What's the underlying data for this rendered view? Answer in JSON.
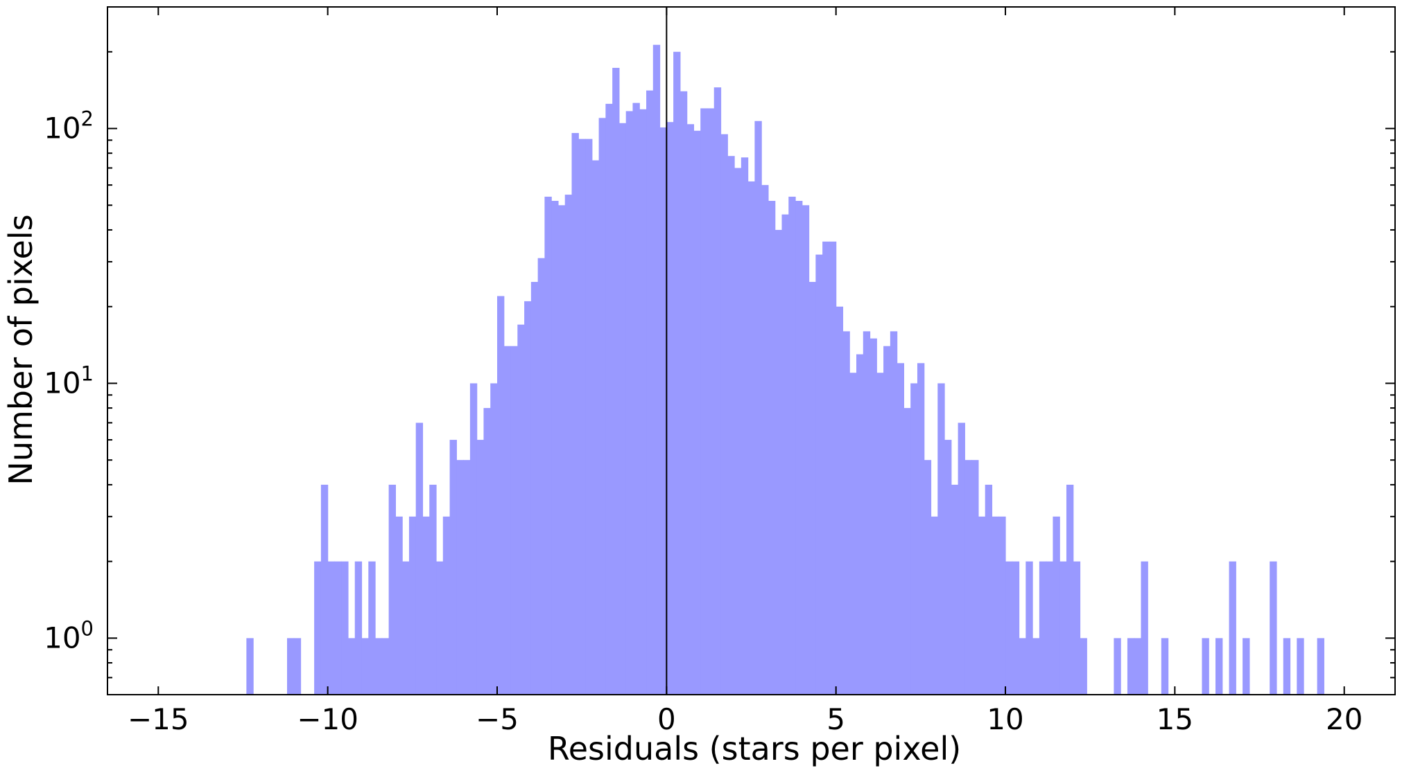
{
  "chart_data": {
    "type": "bar",
    "subtype": "histogram",
    "title": "",
    "xlabel": "Residuals (stars per pixel)",
    "ylabel": "Number of pixels",
    "xlim": [
      -16.5,
      21.5
    ],
    "ylim": [
      0.6,
      300
    ],
    "yscale": "log",
    "grid": false,
    "bin_width": 0.2,
    "bar_color": "#9999ff",
    "reference_line": {
      "x": 0,
      "color": "#000000"
    },
    "x_ticks": [
      "−15",
      "−10",
      "−5",
      "0",
      "5",
      "10",
      "15",
      "20"
    ],
    "x_tick_values": [
      -15,
      -10,
      -5,
      0,
      5,
      10,
      15,
      20
    ],
    "y_ticks": [
      {
        "value": 1,
        "base": "10",
        "exp": "0"
      },
      {
        "value": 10,
        "base": "10",
        "exp": "1"
      },
      {
        "value": 100,
        "base": "10",
        "exp": "2"
      }
    ],
    "series": [
      {
        "bins": [
          {
            "x": -12.3,
            "y": 1
          },
          {
            "x": -11.1,
            "y": 1
          },
          {
            "x": -10.9,
            "y": 1
          },
          {
            "x": -10.3,
            "y": 2
          },
          {
            "x": -10.1,
            "y": 4
          },
          {
            "x": -9.9,
            "y": 2
          },
          {
            "x": -9.7,
            "y": 2
          },
          {
            "x": -9.5,
            "y": 2
          },
          {
            "x": -9.3,
            "y": 1
          },
          {
            "x": -9.1,
            "y": 2
          },
          {
            "x": -8.9,
            "y": 1
          },
          {
            "x": -8.7,
            "y": 2
          },
          {
            "x": -8.5,
            "y": 1
          },
          {
            "x": -8.3,
            "y": 1
          },
          {
            "x": -8.1,
            "y": 4
          },
          {
            "x": -7.9,
            "y": 3
          },
          {
            "x": -7.7,
            "y": 2
          },
          {
            "x": -7.5,
            "y": 3
          },
          {
            "x": -7.3,
            "y": 7
          },
          {
            "x": -7.1,
            "y": 3
          },
          {
            "x": -6.9,
            "y": 4
          },
          {
            "x": -6.7,
            "y": 2
          },
          {
            "x": -6.5,
            "y": 3
          },
          {
            "x": -6.3,
            "y": 6
          },
          {
            "x": -6.1,
            "y": 5
          },
          {
            "x": -5.9,
            "y": 5
          },
          {
            "x": -5.7,
            "y": 10
          },
          {
            "x": -5.5,
            "y": 6
          },
          {
            "x": -5.3,
            "y": 8
          },
          {
            "x": -5.1,
            "y": 10
          },
          {
            "x": -4.9,
            "y": 22
          },
          {
            "x": -4.7,
            "y": 14
          },
          {
            "x": -4.5,
            "y": 14
          },
          {
            "x": -4.3,
            "y": 17
          },
          {
            "x": -4.1,
            "y": 21
          },
          {
            "x": -3.9,
            "y": 25
          },
          {
            "x": -3.7,
            "y": 31
          },
          {
            "x": -3.5,
            "y": 54
          },
          {
            "x": -3.3,
            "y": 52
          },
          {
            "x": -3.1,
            "y": 50
          },
          {
            "x": -2.9,
            "y": 55
          },
          {
            "x": -2.7,
            "y": 96
          },
          {
            "x": -2.5,
            "y": 91
          },
          {
            "x": -2.3,
            "y": 91
          },
          {
            "x": -2.1,
            "y": 75
          },
          {
            "x": -1.9,
            "y": 110
          },
          {
            "x": -1.7,
            "y": 125
          },
          {
            "x": -1.5,
            "y": 173
          },
          {
            "x": -1.3,
            "y": 105
          },
          {
            "x": -1.1,
            "y": 117
          },
          {
            "x": -0.9,
            "y": 126
          },
          {
            "x": -0.7,
            "y": 119
          },
          {
            "x": -0.5,
            "y": 141
          },
          {
            "x": -0.3,
            "y": 213
          },
          {
            "x": -0.1,
            "y": 101
          },
          {
            "x": 0.1,
            "y": 106
          },
          {
            "x": 0.3,
            "y": 200
          },
          {
            "x": 0.5,
            "y": 140
          },
          {
            "x": 0.7,
            "y": 104
          },
          {
            "x": 0.9,
            "y": 98
          },
          {
            "x": 1.1,
            "y": 120
          },
          {
            "x": 1.3,
            "y": 120
          },
          {
            "x": 1.5,
            "y": 145
          },
          {
            "x": 1.7,
            "y": 95
          },
          {
            "x": 1.9,
            "y": 78
          },
          {
            "x": 2.1,
            "y": 70
          },
          {
            "x": 2.3,
            "y": 77
          },
          {
            "x": 2.5,
            "y": 62
          },
          {
            "x": 2.7,
            "y": 107
          },
          {
            "x": 2.9,
            "y": 60
          },
          {
            "x": 3.1,
            "y": 52
          },
          {
            "x": 3.3,
            "y": 40
          },
          {
            "x": 3.5,
            "y": 46
          },
          {
            "x": 3.7,
            "y": 54
          },
          {
            "x": 3.9,
            "y": 52
          },
          {
            "x": 4.1,
            "y": 50
          },
          {
            "x": 4.3,
            "y": 25
          },
          {
            "x": 4.5,
            "y": 32
          },
          {
            "x": 4.7,
            "y": 36
          },
          {
            "x": 4.9,
            "y": 36
          },
          {
            "x": 5.1,
            "y": 20
          },
          {
            "x": 5.3,
            "y": 16
          },
          {
            "x": 5.5,
            "y": 11
          },
          {
            "x": 5.7,
            "y": 13
          },
          {
            "x": 5.9,
            "y": 16
          },
          {
            "x": 6.1,
            "y": 15
          },
          {
            "x": 6.3,
            "y": 11
          },
          {
            "x": 6.5,
            "y": 14
          },
          {
            "x": 6.7,
            "y": 16
          },
          {
            "x": 6.9,
            "y": 12
          },
          {
            "x": 7.1,
            "y": 8
          },
          {
            "x": 7.3,
            "y": 10
          },
          {
            "x": 7.5,
            "y": 12
          },
          {
            "x": 7.7,
            "y": 5
          },
          {
            "x": 7.9,
            "y": 3
          },
          {
            "x": 8.1,
            "y": 10
          },
          {
            "x": 8.3,
            "y": 6
          },
          {
            "x": 8.5,
            "y": 4
          },
          {
            "x": 8.7,
            "y": 7
          },
          {
            "x": 8.9,
            "y": 5
          },
          {
            "x": 9.1,
            "y": 5
          },
          {
            "x": 9.3,
            "y": 3
          },
          {
            "x": 9.5,
            "y": 4
          },
          {
            "x": 9.7,
            "y": 3
          },
          {
            "x": 9.9,
            "y": 3
          },
          {
            "x": 10.1,
            "y": 2
          },
          {
            "x": 10.3,
            "y": 2
          },
          {
            "x": 10.5,
            "y": 1
          },
          {
            "x": 10.7,
            "y": 2
          },
          {
            "x": 10.9,
            "y": 1
          },
          {
            "x": 11.1,
            "y": 2
          },
          {
            "x": 11.3,
            "y": 2
          },
          {
            "x": 11.5,
            "y": 3
          },
          {
            "x": 11.7,
            "y": 2
          },
          {
            "x": 11.9,
            "y": 4
          },
          {
            "x": 12.1,
            "y": 2
          },
          {
            "x": 12.3,
            "y": 1
          },
          {
            "x": 13.3,
            "y": 1
          },
          {
            "x": 13.7,
            "y": 1
          },
          {
            "x": 13.9,
            "y": 1
          },
          {
            "x": 14.1,
            "y": 2
          },
          {
            "x": 14.7,
            "y": 1
          },
          {
            "x": 15.9,
            "y": 1
          },
          {
            "x": 16.3,
            "y": 1
          },
          {
            "x": 16.7,
            "y": 2
          },
          {
            "x": 17.1,
            "y": 1
          },
          {
            "x": 17.9,
            "y": 2
          },
          {
            "x": 18.3,
            "y": 1
          },
          {
            "x": 18.7,
            "y": 1
          },
          {
            "x": 19.3,
            "y": 1
          }
        ]
      }
    ]
  }
}
